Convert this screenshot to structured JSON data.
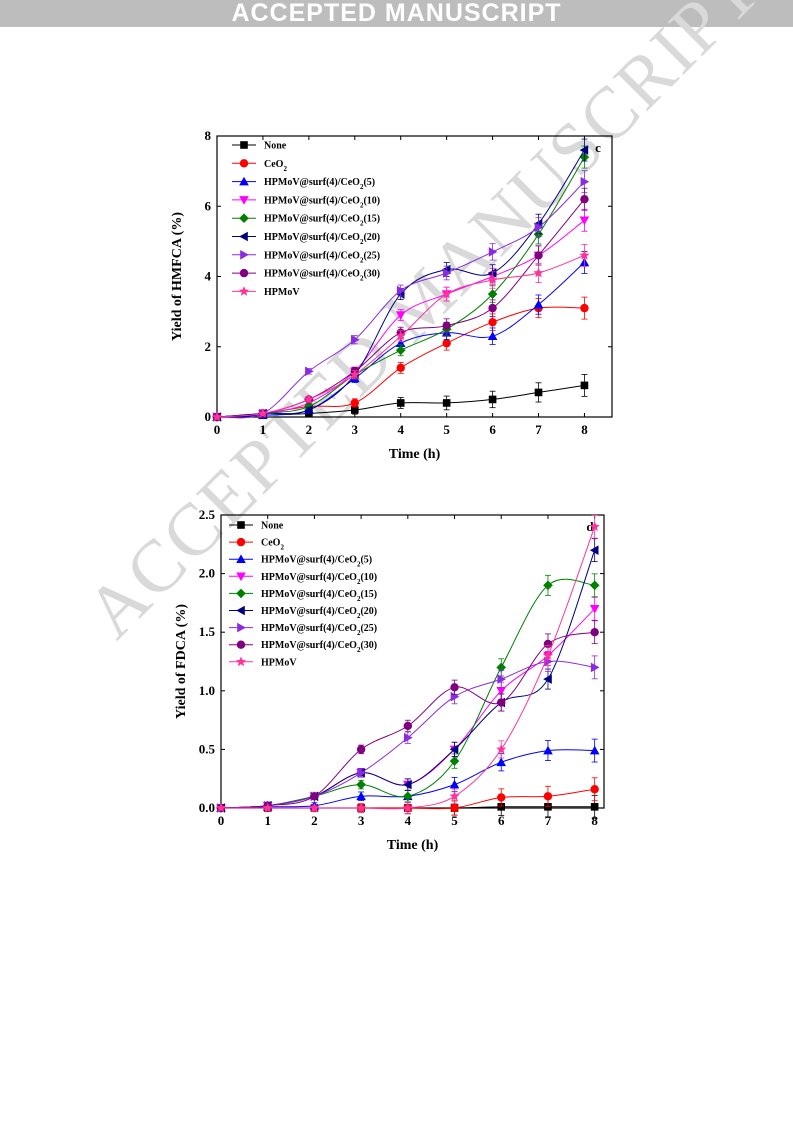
{
  "header": {
    "banner": "ACCEPTED MANUSCRIPT"
  },
  "watermark": "ACCEPTED MANUSCRIPT",
  "chart_data": [
    {
      "type": "line",
      "panel": "c",
      "xlabel": "Time (h)",
      "ylabel": "Yield of HMFCA (%)",
      "xlim": [
        0,
        8.6
      ],
      "ylim": [
        0,
        8
      ],
      "xticks": [
        "0",
        "1",
        "2",
        "3",
        "4",
        "5",
        "6",
        "7",
        "8"
      ],
      "yticks": [
        "0",
        "2",
        "4",
        "6",
        "8"
      ],
      "x": [
        0,
        1,
        2,
        3,
        4,
        5,
        6,
        7,
        8
      ],
      "legend_position": "top-left",
      "series": [
        {
          "name": "None",
          "label": "None",
          "sub": "",
          "tail": "",
          "color": "#000000",
          "marker": "square",
          "values": [
            0,
            0.05,
            0.1,
            0.2,
            0.4,
            0.4,
            0.5,
            0.7,
            0.9
          ]
        },
        {
          "name": "CeO2",
          "label": "CeO",
          "sub": "2",
          "tail": "",
          "color": "#ff0000",
          "marker": "circle",
          "values": [
            0,
            0.1,
            0.3,
            0.4,
            1.4,
            2.1,
            2.7,
            3.1,
            3.1
          ]
        },
        {
          "name": "HPMoV@surf(4)/CeO2(5)",
          "label": "HPMoV@surf(4)/CeO",
          "sub": "2",
          "tail": "(5)",
          "color": "#0000ff",
          "marker": "triangle-up",
          "values": [
            0,
            0.05,
            0.2,
            1.1,
            2.1,
            2.4,
            2.3,
            3.2,
            4.4
          ]
        },
        {
          "name": "HPMoV@surf(4)/CeO2(10)",
          "label": "HPMoV@surf(4)/CeO",
          "sub": "2",
          "tail": "(10)",
          "color": "#ff00ff",
          "marker": "triangle-down",
          "values": [
            0,
            0.1,
            0.4,
            1.3,
            2.9,
            3.5,
            4.0,
            4.6,
            5.6
          ]
        },
        {
          "name": "HPMoV@surf(4)/CeO2(15)",
          "label": "HPMoV@surf(4)/CeO",
          "sub": "2",
          "tail": "(15)",
          "color": "#008000",
          "marker": "diamond",
          "values": [
            0,
            0.1,
            0.3,
            1.2,
            1.9,
            2.5,
            3.5,
            5.2,
            7.4
          ]
        },
        {
          "name": "HPMoV@surf(4)/CeO2(20)",
          "label": "HPMoV@surf(4)/CeO",
          "sub": "2",
          "tail": "(20)",
          "color": "#000080",
          "marker": "triangle-left",
          "values": [
            0,
            0.1,
            0.2,
            1.2,
            3.5,
            4.2,
            4.1,
            5.5,
            7.6
          ]
        },
        {
          "name": "HPMoV@surf(4)/CeO2(25)",
          "label": "HPMoV@surf(4)/CeO",
          "sub": "2",
          "tail": "(25)",
          "color": "#8a2be2",
          "marker": "triangle-right",
          "values": [
            0,
            0.1,
            1.3,
            2.2,
            3.6,
            4.1,
            4.7,
            5.4,
            6.7
          ]
        },
        {
          "name": "HPMoV@surf(4)/CeO2(30)",
          "label": "HPMoV@surf(4)/CeO",
          "sub": "2",
          "tail": "(30)",
          "color": "#800080",
          "marker": "circle",
          "values": [
            0,
            0.1,
            0.5,
            1.3,
            2.4,
            2.6,
            3.1,
            4.6,
            6.2
          ]
        },
        {
          "name": "HPMoV",
          "label": "HPMoV",
          "sub": "",
          "tail": "",
          "color": "#ff3399",
          "marker": "star",
          "values": [
            0,
            0.1,
            0.5,
            1.2,
            2.3,
            3.5,
            3.9,
            4.1,
            4.6
          ]
        }
      ]
    },
    {
      "type": "line",
      "panel": "d",
      "xlabel": "Time (h)",
      "ylabel": "Yield of FDCA (%)",
      "xlim": [
        0,
        8.2
      ],
      "ylim": [
        0,
        2.5
      ],
      "xticks": [
        "0",
        "1",
        "2",
        "3",
        "4",
        "5",
        "6",
        "7",
        "8"
      ],
      "yticks": [
        "0.0",
        "0.5",
        "1.0",
        "1.5",
        "2.0",
        "2.5"
      ],
      "x": [
        0,
        1,
        2,
        3,
        4,
        5,
        6,
        7,
        8
      ],
      "legend_position": "top-left",
      "series": [
        {
          "name": "None",
          "label": "None",
          "sub": "",
          "tail": "",
          "color": "#000000",
          "marker": "square",
          "values": [
            0,
            0,
            0,
            0,
            0,
            0,
            0.01,
            0.01,
            0.01
          ]
        },
        {
          "name": "CeO2",
          "label": "CeO",
          "sub": "2",
          "tail": "",
          "color": "#ff0000",
          "marker": "circle",
          "values": [
            0,
            0,
            0,
            0,
            0,
            0,
            0.09,
            0.1,
            0.16
          ]
        },
        {
          "name": "HPMoV@surf(4)/CeO2(5)",
          "label": "HPMoV@surf(4)/CeO",
          "sub": "2",
          "tail": "(5)",
          "color": "#0000ff",
          "marker": "triangle-up",
          "values": [
            0,
            0.01,
            0.02,
            0.1,
            0.1,
            0.2,
            0.39,
            0.49,
            0.49
          ]
        },
        {
          "name": "HPMoV@surf(4)/CeO2(10)",
          "label": "HPMoV@surf(4)/CeO",
          "sub": "2",
          "tail": "(10)",
          "color": "#ff00ff",
          "marker": "triangle-down",
          "values": [
            0,
            0.02,
            0.1,
            0.3,
            0.2,
            0.5,
            1.0,
            1.3,
            1.7
          ]
        },
        {
          "name": "HPMoV@surf(4)/CeO2(15)",
          "label": "HPMoV@surf(4)/CeO",
          "sub": "2",
          "tail": "(15)",
          "color": "#008000",
          "marker": "diamond",
          "values": [
            0,
            0.02,
            0.1,
            0.2,
            0.1,
            0.4,
            1.2,
            1.9,
            1.9
          ]
        },
        {
          "name": "HPMoV@surf(4)/CeO2(20)",
          "label": "HPMoV@surf(4)/CeO",
          "sub": "2",
          "tail": "(20)",
          "color": "#000080",
          "marker": "triangle-left",
          "values": [
            0,
            0.02,
            0.1,
            0.3,
            0.2,
            0.5,
            0.9,
            1.1,
            2.2
          ]
        },
        {
          "name": "HPMoV@surf(4)/CeO2(25)",
          "label": "HPMoV@surf(4)/CeO",
          "sub": "2",
          "tail": "(25)",
          "color": "#8a2be2",
          "marker": "triangle-right",
          "values": [
            0,
            0.02,
            0.1,
            0.3,
            0.6,
            0.95,
            1.1,
            1.25,
            1.2
          ]
        },
        {
          "name": "HPMoV@surf(4)/CeO2(30)",
          "label": "HPMoV@surf(4)/CeO",
          "sub": "2",
          "tail": "(30)",
          "color": "#800080",
          "marker": "circle",
          "values": [
            0,
            0.02,
            0.1,
            0.5,
            0.7,
            1.03,
            0.9,
            1.4,
            1.5
          ]
        },
        {
          "name": "HPMoV",
          "label": "HPMoV",
          "sub": "",
          "tail": "",
          "color": "#ff3399",
          "marker": "star",
          "values": [
            0,
            0,
            0,
            0,
            0,
            0.1,
            0.5,
            1.3,
            2.4
          ]
        }
      ]
    }
  ]
}
